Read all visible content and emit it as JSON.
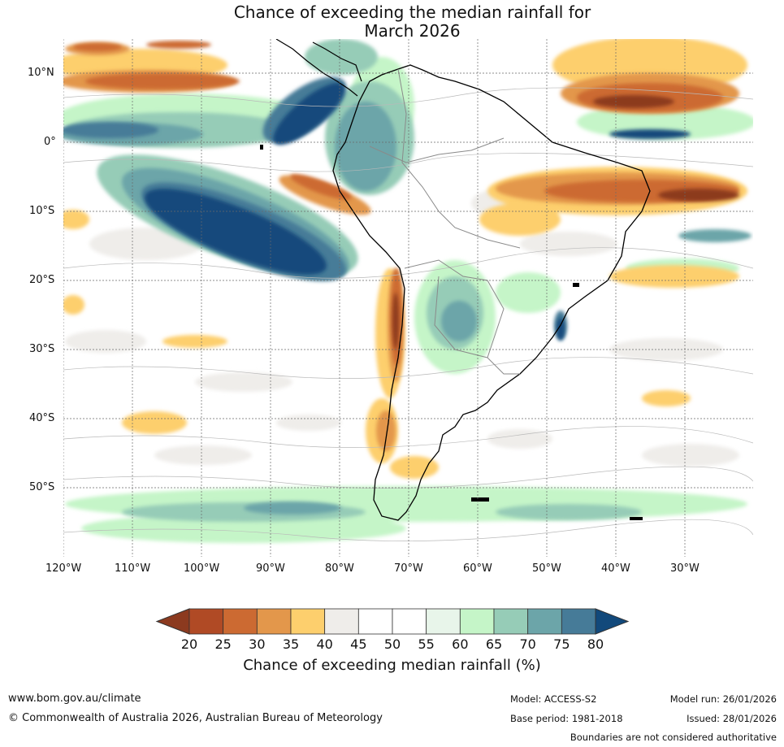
{
  "title": {
    "line1": "Chance of exceeding the median rainfall for",
    "line2": "March 2026"
  },
  "map": {
    "lat_labels": [
      "10°N",
      "0°",
      "10°S",
      "20°S",
      "30°S",
      "40°S",
      "50°S"
    ],
    "lon_labels": [
      "120°W",
      "110°W",
      "100°W",
      "90°W",
      "80°W",
      "70°W",
      "60°W",
      "50°W",
      "40°W",
      "30°W"
    ],
    "lat_range": [
      -60,
      15
    ],
    "lon_range": [
      -120,
      -20
    ]
  },
  "colorbar": {
    "ticks": [
      "20",
      "25",
      "30",
      "35",
      "40",
      "45",
      "50",
      "55",
      "60",
      "65",
      "70",
      "75",
      "80"
    ],
    "colors": [
      "#8c3a1f",
      "#b04a25",
      "#cc6a32",
      "#e3974b",
      "#fdcf6d",
      "#efedea",
      "#ffffff",
      "#ffffff",
      "#e8f5ea",
      "#c5f5c8",
      "#96ccb7",
      "#6ca5a9",
      "#467b98",
      "#12497b"
    ],
    "label": "Chance of exceeding median rainfall (%)"
  },
  "footer": {
    "url": "www.bom.gov.au/climate",
    "copyright": "© Commonwealth of Australia 2026, Australian Bureau of Meteorology",
    "model": "Model: ACCESS-S2",
    "base_period": "Base period: 1981-2018",
    "model_run": "Model run: 26/01/2026",
    "issued": "Issued: 28/01/2026",
    "disclaimer": "Boundaries are not considered authoritative"
  }
}
